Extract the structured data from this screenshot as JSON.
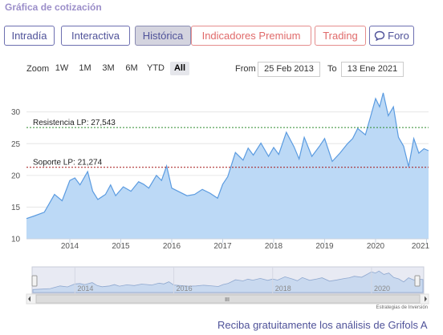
{
  "header": {
    "title": "Gráfica de cotización"
  },
  "tabs": [
    {
      "label": "Intradía"
    },
    {
      "label": "Interactiva"
    },
    {
      "label": "Histórica"
    },
    {
      "label": "Indicadores Premium"
    },
    {
      "label": "Trading"
    },
    {
      "label": "Foro"
    }
  ],
  "colors": {
    "accent": "#4f5299",
    "premium_red": "#e06a6a",
    "series_stroke": "#5b9be0",
    "series_fill": "#bcd9f6",
    "resistance_line": "#2e8b2e",
    "support_line": "#a31515"
  },
  "zoom": {
    "label": "Zoom",
    "buttons": [
      "1W",
      "1M",
      "3M",
      "6M",
      "YTD",
      "All"
    ],
    "selected": "All"
  },
  "range": {
    "from_label": "From",
    "from_value": "25 Feb 2013",
    "to_label": "To",
    "to_value": "13 Ene 2021"
  },
  "chart_data": {
    "type": "area",
    "title": "",
    "xlabel": "",
    "ylabel": "",
    "x_ticks": [
      "2014",
      "2015",
      "2016",
      "2017",
      "2018",
      "2019",
      "2020",
      "2021"
    ],
    "y_ticks": [
      10,
      15,
      20,
      25,
      30
    ],
    "ylim": [
      10,
      34
    ],
    "xlim": [
      2013.15,
      2021.04
    ],
    "grid": true,
    "series": [
      {
        "x": [
          2013.15,
          2013.3,
          2013.5,
          2013.7,
          2013.85,
          2014.0,
          2014.1,
          2014.2,
          2014.35,
          2014.45,
          2014.55,
          2014.7,
          2014.8,
          2014.9,
          2015.05,
          2015.2,
          2015.35,
          2015.45,
          2015.55,
          2015.7,
          2015.8,
          2015.9,
          2016.0,
          2016.15,
          2016.3,
          2016.45,
          2016.6,
          2016.75,
          2016.9,
          2017.0,
          2017.1,
          2017.25,
          2017.4,
          2017.5,
          2017.6,
          2017.75,
          2017.9,
          2018.0,
          2018.1,
          2018.25,
          2018.4,
          2018.5,
          2018.6,
          2018.75,
          2018.9,
          2019.0,
          2019.15,
          2019.3,
          2019.45,
          2019.55,
          2019.65,
          2019.8,
          2019.9,
          2020.0,
          2020.08,
          2020.15,
          2020.25,
          2020.35,
          2020.45,
          2020.55,
          2020.65,
          2020.75,
          2020.85,
          2020.95,
          2021.04
        ],
        "values": [
          13.2,
          13.6,
          14.2,
          17.0,
          16.0,
          19.2,
          19.6,
          18.5,
          20.6,
          17.5,
          16.2,
          17.0,
          18.5,
          16.8,
          18.2,
          17.5,
          19.0,
          18.6,
          18.0,
          20.0,
          19.2,
          21.5,
          18.0,
          17.4,
          16.8,
          17.0,
          17.8,
          17.2,
          16.4,
          18.6,
          19.8,
          23.6,
          22.4,
          24.3,
          23.2,
          25.1,
          23.0,
          24.4,
          23.3,
          26.8,
          24.5,
          22.6,
          26.0,
          23.0,
          24.6,
          25.8,
          22.2,
          23.5,
          25.0,
          25.8,
          27.4,
          26.4,
          29.2,
          32.1,
          30.8,
          33.0,
          29.4,
          30.8,
          26.0,
          24.6,
          21.4,
          25.8,
          23.5,
          24.2,
          23.9
        ]
      }
    ],
    "annotations": [
      {
        "label": "Resistencia LP: 27,543",
        "value": 27.543
      },
      {
        "label": "Soporte LP: 21,274",
        "value": 21.274
      }
    ],
    "navigator": {
      "x_ticks": [
        "2014",
        "2016",
        "2018",
        "2020"
      ],
      "grip_glyph": "III"
    }
  },
  "credit": "Estrategias de Inversión",
  "footer": {
    "text": "Reciba gratuitamente los análisis de Grifols A"
  }
}
